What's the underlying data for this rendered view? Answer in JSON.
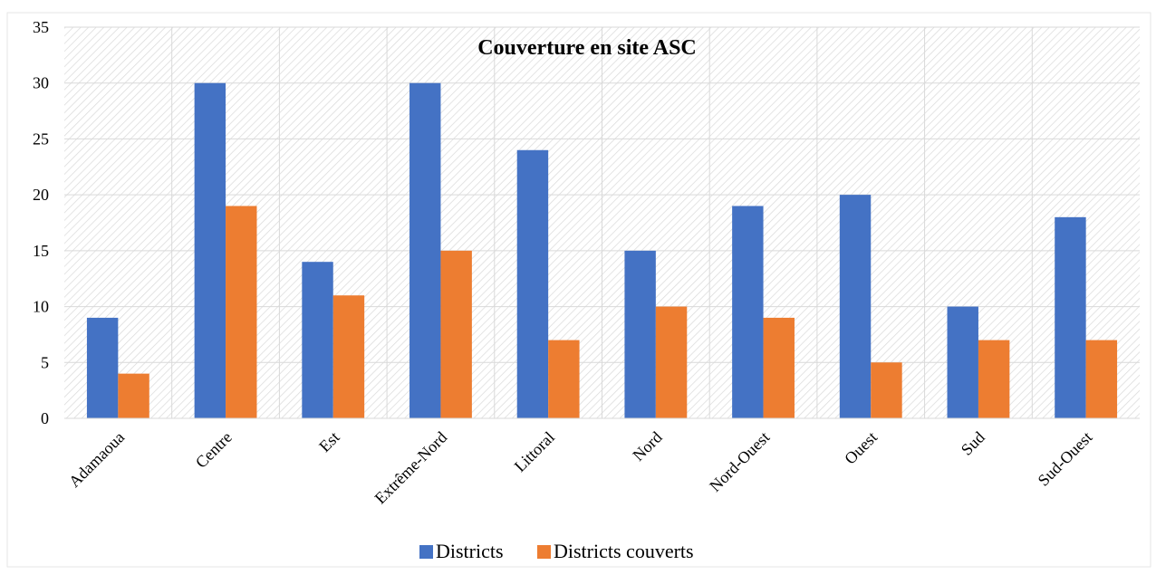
{
  "chart_data": {
    "type": "bar",
    "title": "Couverture en site ASC",
    "categories": [
      "Adamaoua",
      "Centre",
      "Est",
      "Extrême-Nord",
      "Littoral",
      "Nord",
      "Nord-Ouest",
      "Ouest",
      "Sud",
      "Sud-Ouest"
    ],
    "series": [
      {
        "name": "Districts",
        "color": "#4472C4",
        "values": [
          9,
          30,
          14,
          30,
          24,
          15,
          19,
          20,
          10,
          18
        ]
      },
      {
        "name": "Districts couverts",
        "color": "#ED7D31",
        "values": [
          4,
          19,
          11,
          15,
          7,
          10,
          9,
          5,
          7,
          7
        ]
      }
    ],
    "ylim": [
      0,
      35
    ],
    "yticks": [
      0,
      5,
      10,
      15,
      20,
      25,
      30,
      35
    ],
    "grid": true,
    "legend_position": "bottom"
  }
}
